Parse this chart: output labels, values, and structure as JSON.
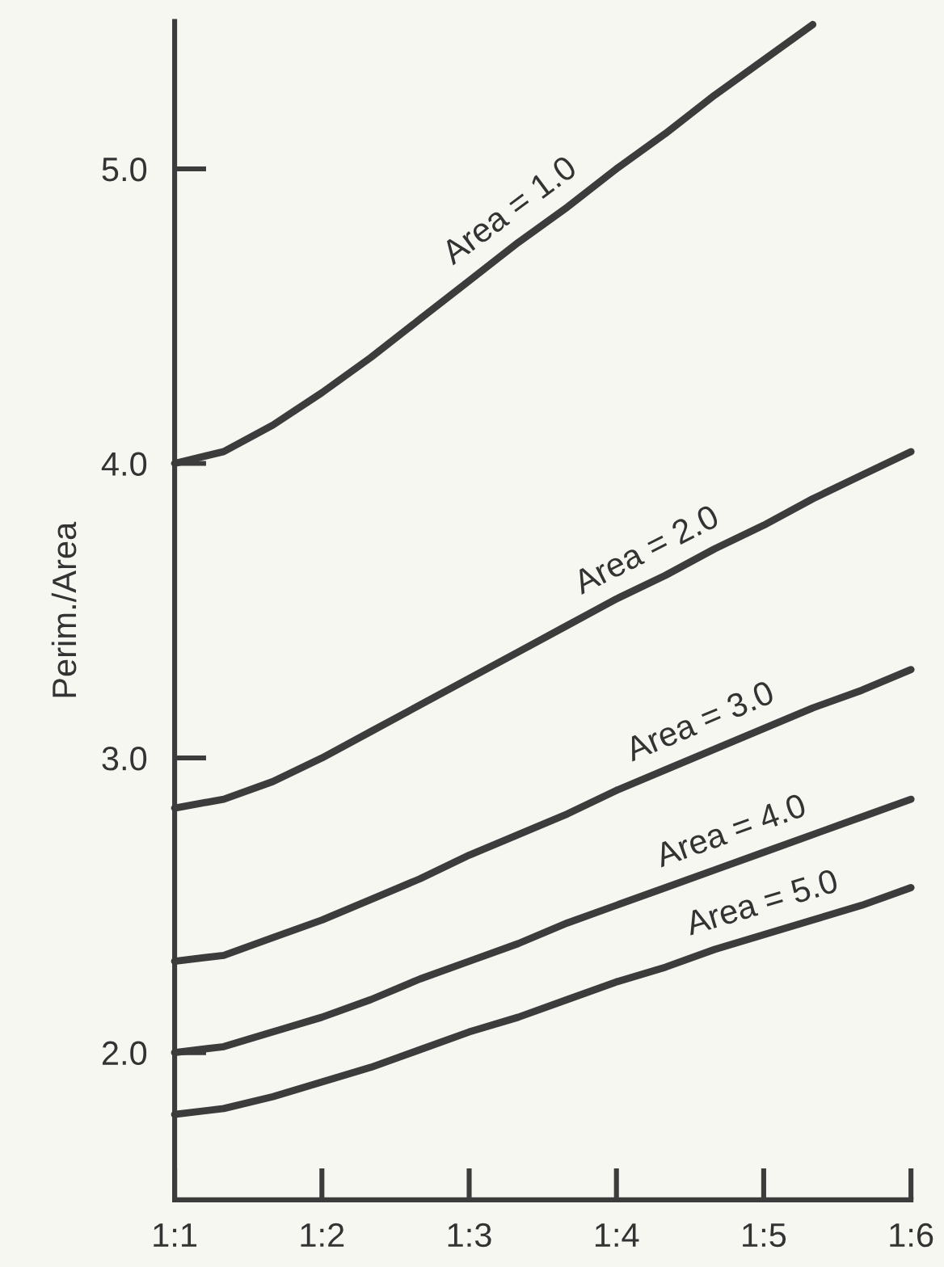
{
  "chart_data": {
    "type": "line",
    "ylabel": "Perim./Area",
    "categories": [
      "1:1",
      null,
      null,
      "1:2",
      null,
      null,
      "1:3",
      null,
      null,
      "1:4",
      null,
      null,
      "1:5",
      null,
      null,
      "1:6"
    ],
    "series": [
      {
        "color": "#3c3c3c",
        "values": [
          4.0,
          4.04,
          4.13,
          4.24,
          4.36,
          4.49,
          4.62,
          4.75,
          4.87,
          5.0,
          5.12,
          5.25,
          5.37,
          5.49,
          null,
          null
        ]
      },
      {
        "color": "#3c3c3c",
        "values": [
          2.83,
          2.86,
          2.92,
          3.0,
          3.09,
          3.18,
          3.27,
          3.36,
          3.45,
          3.54,
          3.62,
          3.71,
          3.79,
          3.88,
          3.96,
          4.04
        ]
      },
      {
        "color": "#3c3c3c",
        "values": [
          2.31,
          2.33,
          2.39,
          2.45,
          2.52,
          2.59,
          2.67,
          2.74,
          2.81,
          2.89,
          2.96,
          3.03,
          3.1,
          3.17,
          3.23,
          3.3
        ]
      },
      {
        "color": "#3c3c3c",
        "values": [
          2.0,
          2.02,
          2.07,
          2.12,
          2.18,
          2.25,
          2.31,
          2.37,
          2.44,
          2.5,
          2.56,
          2.62,
          2.68,
          2.74,
          2.8,
          2.86
        ]
      },
      {
        "color": "#3c3c3c",
        "values": [
          1.79,
          1.81,
          1.85,
          1.9,
          1.95,
          2.01,
          2.07,
          2.12,
          2.18,
          2.24,
          2.29,
          2.35,
          2.4,
          2.45,
          2.5,
          2.56
        ]
      }
    ],
    "annotations": [
      "Area = 1.0",
      "Area = 2.0",
      "Area = 3.0",
      "Area = 4.0",
      "Area = 5.0"
    ],
    "ylim": [
      1.5,
      5.5
    ],
    "yticks": [
      {
        "value": 2.0,
        "label": "2.0"
      },
      {
        "value": 3.0,
        "label": "3.0"
      },
      {
        "value": 4.0,
        "label": "4.0"
      },
      {
        "value": 5.0,
        "label": "5.0"
      }
    ],
    "grid": false,
    "legend": false,
    "marker": "none",
    "line_style": "solid"
  }
}
